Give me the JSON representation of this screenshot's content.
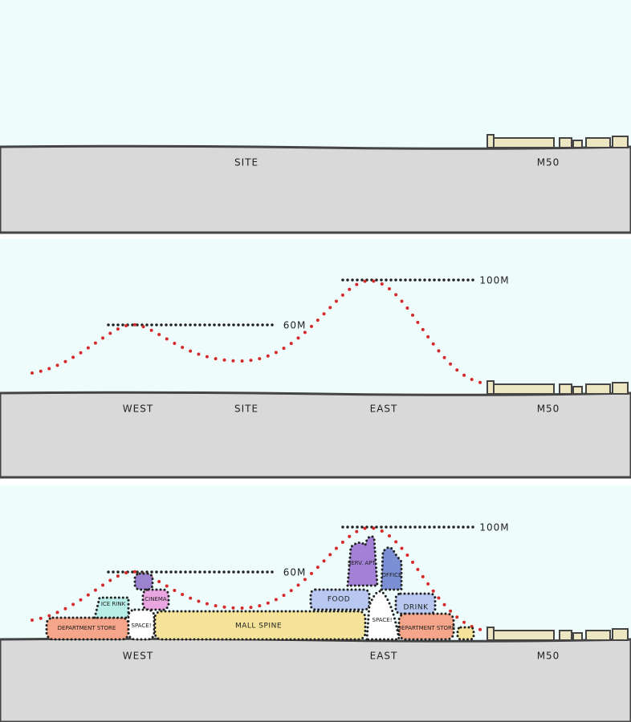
{
  "panels": [
    {
      "site_label": "SITE",
      "m50_label": "M50"
    },
    {
      "height_labels": [
        "100M",
        "60M"
      ],
      "zone_labels": [
        "WEST",
        "SITE",
        "EAST"
      ],
      "m50_label": "M50"
    },
    {
      "height_labels": [
        "100M",
        "60M"
      ],
      "blocks": [
        "DEPARTMENT STORE",
        "ICE RINK",
        "CINEMA",
        "SPACE!",
        "MALL SPINE",
        "FOOD",
        "SERV. APT.",
        "OFFICE",
        "SPACE!",
        "DRINK",
        "DEPARTMENT STORE"
      ],
      "zone_labels": [
        "WEST",
        "EAST"
      ],
      "m50_label": "M50"
    }
  ]
}
